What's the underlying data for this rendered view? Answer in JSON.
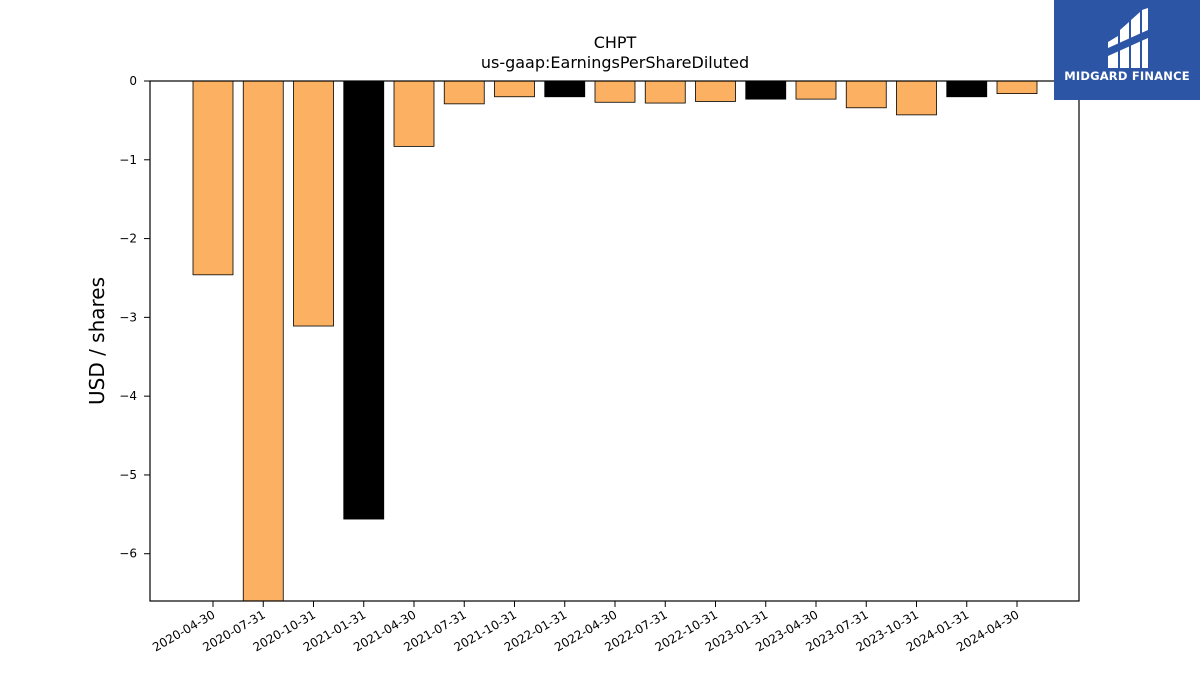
{
  "chart_data": {
    "type": "bar",
    "title": "CHPT",
    "subtitle": "us-gaap:EarningsPerShareDiluted",
    "xlabel": "",
    "ylabel": "USD / shares",
    "ylim": [
      -6.6,
      0
    ],
    "yticks": [
      0,
      -1,
      -2,
      -3,
      -4,
      -5,
      -6
    ],
    "ytick_labels": [
      "0",
      "−1",
      "−2",
      "−3",
      "−4",
      "−5",
      "−6"
    ],
    "grid": false,
    "categories": [
      "2020-04-30",
      "2020-07-31",
      "2020-10-31",
      "2021-01-31",
      "2021-04-30",
      "2021-07-31",
      "2021-10-31",
      "2022-01-31",
      "2022-04-30",
      "2022-07-31",
      "2022-10-31",
      "2023-01-31",
      "2023-04-30",
      "2023-07-31",
      "2023-10-31",
      "2024-01-31",
      "2024-04-30"
    ],
    "values": [
      -2.46,
      -6.6,
      -3.11,
      -5.56,
      -0.83,
      -0.29,
      -0.2,
      -0.2,
      -0.27,
      -0.28,
      -0.26,
      -0.23,
      -0.23,
      -0.34,
      -0.43,
      -0.2,
      -0.16
    ],
    "bar_colors": [
      "#fbb161",
      "#fbb161",
      "#fbb161",
      "#000000",
      "#fbb161",
      "#fbb161",
      "#fbb161",
      "#000000",
      "#fbb161",
      "#fbb161",
      "#fbb161",
      "#000000",
      "#fbb161",
      "#fbb161",
      "#fbb161",
      "#000000",
      "#fbb161"
    ]
  },
  "logo": {
    "text": "MIDGARD FINANCE",
    "background": "#2d55a6"
  }
}
